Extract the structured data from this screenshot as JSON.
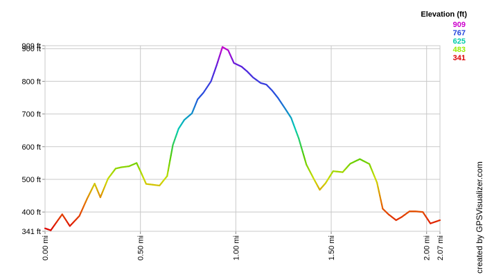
{
  "chart_data": {
    "type": "line",
    "title": "",
    "xlabel": "",
    "ylabel": "",
    "xlim": [
      0.0,
      2.07
    ],
    "ylim": [
      341,
      909
    ],
    "grid": true,
    "x_ticks": [
      {
        "value": 0.0,
        "label": "0.00 mi"
      },
      {
        "value": 0.5,
        "label": "0.50 mi"
      },
      {
        "value": 1.0,
        "label": "1.00 mi"
      },
      {
        "value": 1.5,
        "label": "1.50 mi"
      },
      {
        "value": 2.0,
        "label": "2.00 mi"
      },
      {
        "value": 2.07,
        "label": "2.07 mi"
      }
    ],
    "y_ticks": [
      {
        "value": 341,
        "label": "341 ft"
      },
      {
        "value": 400,
        "label": "400 ft"
      },
      {
        "value": 500,
        "label": "500 ft"
      },
      {
        "value": 600,
        "label": "600 ft"
      },
      {
        "value": 700,
        "label": "700 ft"
      },
      {
        "value": 800,
        "label": "800 ft"
      },
      {
        "value": 900,
        "label": "900 ft"
      },
      {
        "value": 909,
        "label": "909 ft"
      }
    ],
    "legend": {
      "title": "Elevation (ft)",
      "placement": "top-right",
      "entries": [
        {
          "label": "909",
          "color": "#cc00cc"
        },
        {
          "label": "767",
          "color": "#2244dd"
        },
        {
          "label": "625",
          "color": "#00ccaa"
        },
        {
          "label": "483",
          "color": "#99ee00"
        },
        {
          "label": "341",
          "color": "#dd0000"
        }
      ]
    },
    "series": [
      {
        "x": [
          0.0,
          0.03,
          0.09,
          0.13,
          0.18,
          0.22,
          0.26,
          0.29,
          0.33,
          0.37,
          0.4,
          0.44,
          0.48,
          0.5,
          0.53,
          0.6,
          0.64,
          0.67,
          0.7,
          0.73,
          0.77,
          0.8,
          0.83,
          0.87,
          0.9,
          0.93,
          0.96,
          0.99,
          1.03,
          1.06,
          1.09,
          1.13,
          1.16,
          1.19,
          1.22,
          1.26,
          1.29,
          1.33,
          1.37,
          1.41,
          1.44,
          1.47,
          1.51,
          1.56,
          1.6,
          1.65,
          1.7,
          1.74,
          1.77,
          1.8,
          1.84,
          1.87,
          1.91,
          1.94,
          1.98,
          2.02,
          2.07
        ],
        "y": [
          350,
          344,
          393,
          357,
          388,
          440,
          487,
          445,
          502,
          533,
          537,
          540,
          550,
          525,
          486,
          481,
          510,
          605,
          655,
          682,
          702,
          745,
          765,
          800,
          850,
          905,
          895,
          856,
          845,
          830,
          812,
          795,
          790,
          772,
          750,
          715,
          688,
          625,
          545,
          500,
          468,
          488,
          525,
          522,
          548,
          562,
          547,
          490,
          410,
          393,
          375,
          385,
          402,
          402,
          400,
          365,
          375
        ]
      }
    ]
  },
  "credit": "created by GPSVisualizer.com"
}
